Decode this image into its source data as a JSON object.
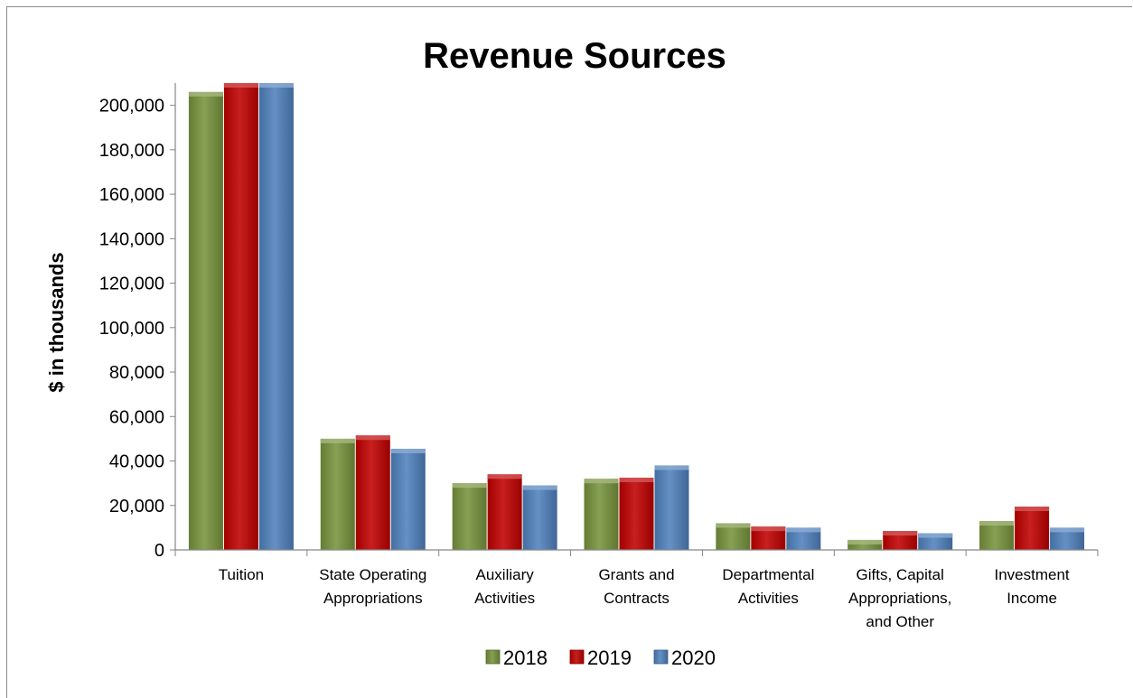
{
  "chart_data": {
    "type": "bar",
    "title": "Revenue Sources",
    "ylabel": "$ in thousands",
    "xlabel": "",
    "ylim": [
      0,
      210000
    ],
    "yticks": [
      "0",
      "20,000",
      "40,000",
      "60,000",
      "80,000",
      "100,000",
      "120,000",
      "140,000",
      "160,000",
      "180,000",
      "200,000"
    ],
    "ytick_values": [
      0,
      20000,
      40000,
      60000,
      80000,
      100000,
      120000,
      140000,
      160000,
      180000,
      200000
    ],
    "grid": false,
    "legend_position": "bottom",
    "categories": [
      [
        "Tuition"
      ],
      [
        "State Operating",
        "Appropriations"
      ],
      [
        "Auxiliary",
        "Activities"
      ],
      [
        "Grants and",
        "Contracts"
      ],
      [
        "Departmental",
        "Activities"
      ],
      [
        "Gifts, Capital",
        "Appropriations,",
        "and Other"
      ],
      [
        "Investment",
        "Income"
      ]
    ],
    "series": [
      {
        "name": "2018",
        "color": "#77933c",
        "values": [
          206000,
          50000,
          30000,
          32000,
          12000,
          4500,
          13000
        ]
      },
      {
        "name": "2019",
        "color": "#c00000",
        "values": [
          210000,
          51500,
          34000,
          32500,
          10500,
          8500,
          19500
        ]
      },
      {
        "name": "2020",
        "color": "#4f81bd",
        "values": [
          210000,
          45500,
          29000,
          38000,
          10000,
          7500,
          10000
        ]
      }
    ]
  }
}
